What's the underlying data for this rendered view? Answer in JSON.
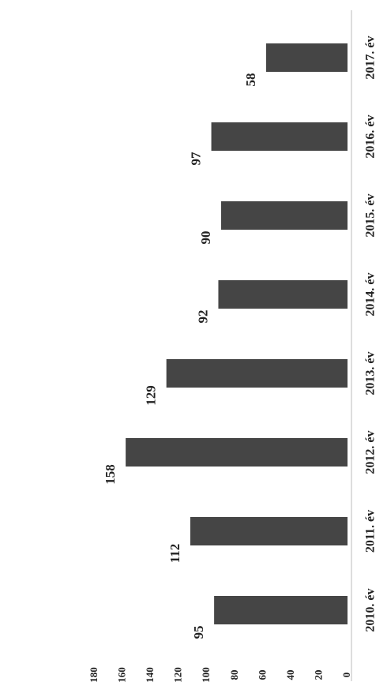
{
  "chart_data": {
    "type": "bar",
    "categories": [
      "2010. év",
      "2011. év",
      "2012. év",
      "2013. év",
      "2014. év",
      "2015. év",
      "2016. év",
      "2017. év"
    ],
    "values": [
      95,
      112,
      158,
      129,
      92,
      90,
      97,
      58
    ],
    "color": "#454545",
    "ylim": [
      0,
      180
    ],
    "yticks": [
      0,
      20,
      40,
      60,
      80,
      100,
      120,
      140,
      160,
      180
    ],
    "grid": false
  }
}
